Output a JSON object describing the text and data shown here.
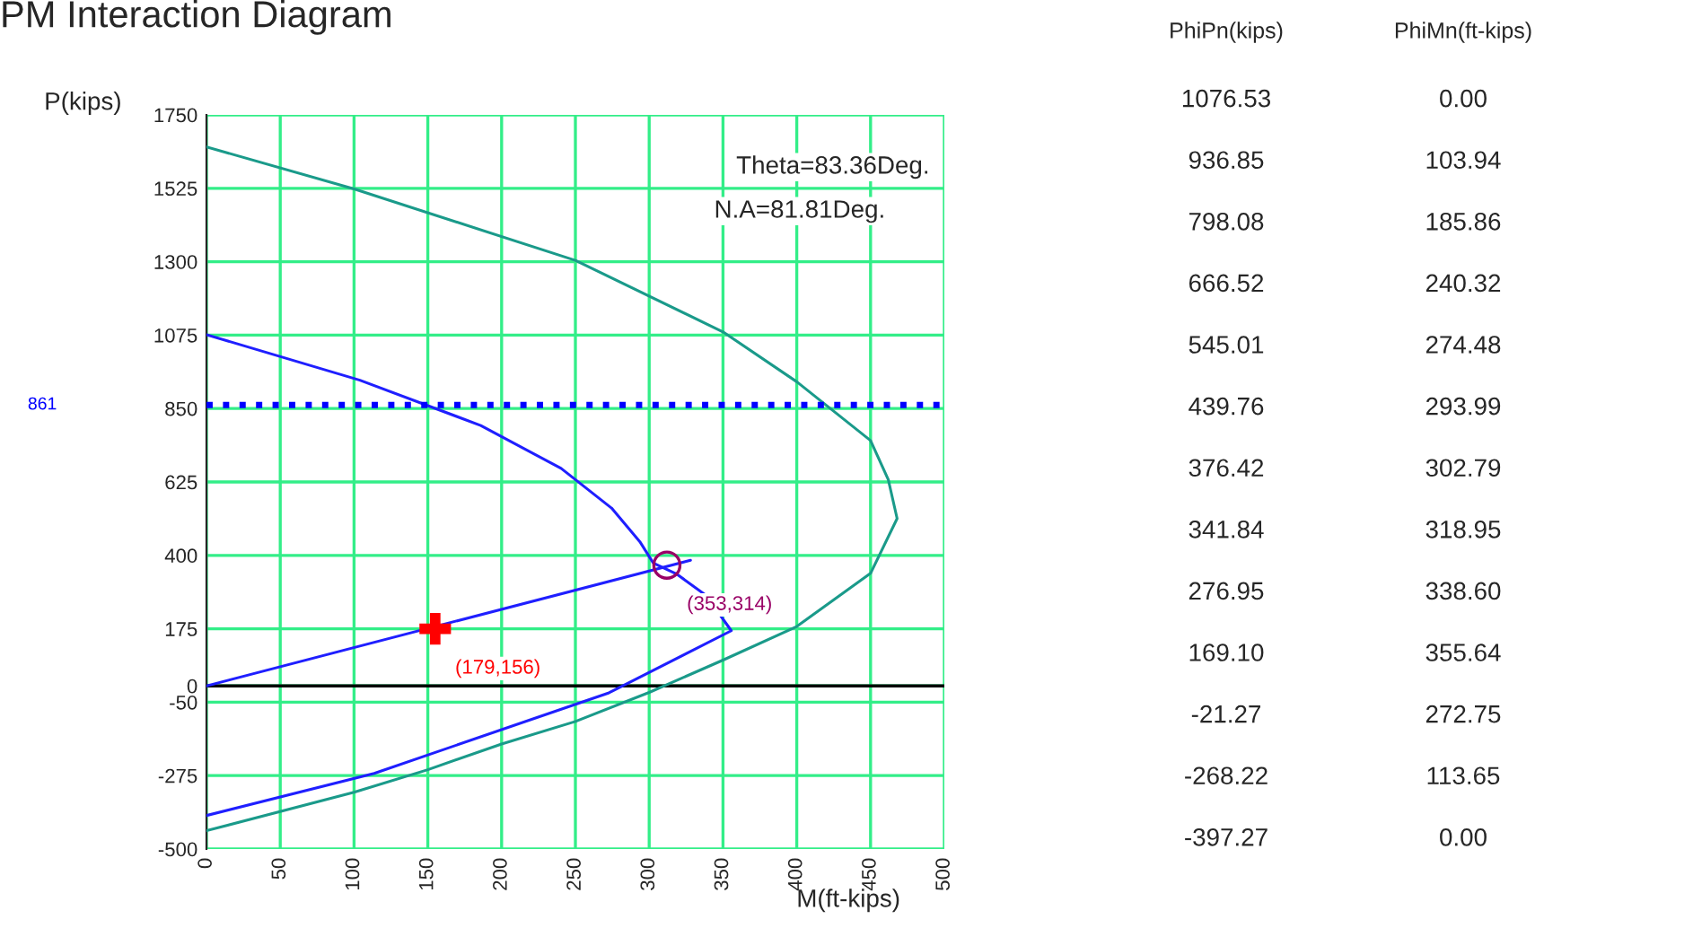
{
  "chart_data": [
    {
      "type": "line",
      "title": "PM Interaction Diagram",
      "xlabel": "M(ft-kips)",
      "ylabel": "P(kips)",
      "xlim": [
        0,
        500
      ],
      "xticks": [
        0,
        50,
        100,
        150,
        200,
        250,
        300,
        350,
        400,
        450,
        500
      ],
      "ylim": [
        -500,
        1750
      ],
      "yticks": [
        1750,
        1525,
        1300,
        1075,
        850,
        625,
        400,
        175,
        0,
        -50,
        -275,
        -500
      ],
      "grid": true,
      "series": [
        {
          "type": "line",
          "color": "#1a9a8a",
          "x": [
            0,
            100,
            250,
            350,
            400,
            450,
            462,
            468,
            450,
            400,
            350,
            300,
            250,
            200,
            150,
            100,
            0
          ],
          "values": [
            1652,
            1523,
            1304,
            1085,
            932,
            752,
            632,
            513,
            345,
            182,
            79,
            -20,
            -109,
            -178,
            -257,
            -326,
            -444
          ]
        },
        {
          "type": "line",
          "color": "#1f1fff",
          "x": [
            0.0,
            103.94,
            185.86,
            240.32,
            274.48,
            293.99,
            302.79,
            318.95,
            338.6,
            355.64,
            272.75,
            113.65,
            0.0
          ],
          "values": [
            1076.53,
            936.85,
            798.08,
            666.52,
            545.01,
            439.76,
            376.42,
            341.84,
            276.95,
            169.1,
            -21.27,
            -268.22,
            -397.27
          ]
        },
        {
          "type": "line",
          "color": "#1f1fff",
          "x": [
            0,
            328
          ],
          "values": [
            0,
            385
          ]
        },
        {
          "type": "scatter",
          "marker": "cross",
          "color": "#ff0000",
          "x": [
            155
          ],
          "values": [
            175
          ]
        },
        {
          "type": "scatter",
          "marker": "circle",
          "color": "#990066",
          "x": [
            312
          ],
          "values": [
            370
          ]
        }
      ],
      "ref_lines": [
        {
          "axis": "y",
          "value": 861,
          "label": "861",
          "color": "#0000ff",
          "line_style": "dotted"
        }
      ],
      "annotations": [
        "Theta=83.36Deg.",
        "N.A=81.81Deg.",
        {
          "text": "(353,314)",
          "x": 312,
          "y": 370
        },
        {
          "text": "(179,156)",
          "x": 155,
          "y": 175
        }
      ]
    },
    {
      "type": "other",
      "annotations": [
        "PhiPn(kips)",
        "PhiMn(ft-kips)",
        "1076.53",
        "0.00",
        "936.85",
        "103.94",
        "798.08",
        "185.86",
        "666.52",
        "240.32",
        "545.01",
        "274.48",
        "439.76",
        "293.99",
        "376.42",
        "302.79",
        "341.84",
        "318.95",
        "276.95",
        "338.60",
        "169.10",
        "355.64",
        "-21.27",
        "272.75",
        "-268.22",
        "113.65",
        "-397.27",
        "0.00"
      ]
    }
  ]
}
